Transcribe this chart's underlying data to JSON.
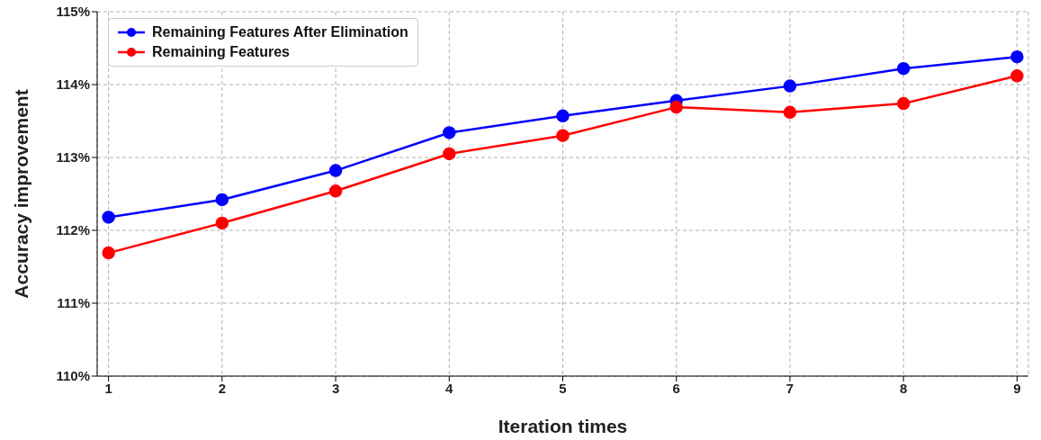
{
  "chart_data": {
    "type": "line",
    "xlabel": "Iteration times",
    "ylabel": "Accuracy improvement",
    "x": [
      1,
      2,
      3,
      4,
      5,
      6,
      7,
      8,
      9
    ],
    "series": [
      {
        "name": "Remaining Features After Elimination",
        "color": "#0000ff",
        "values": [
          112.18,
          112.42,
          112.82,
          113.34,
          113.57,
          113.78,
          113.98,
          114.22,
          114.38
        ]
      },
      {
        "name": "Remaining Features",
        "color": "#ff0000",
        "values": [
          111.69,
          112.1,
          112.54,
          113.05,
          113.3,
          113.69,
          113.62,
          113.74,
          114.12
        ]
      }
    ],
    "xlim": [
      0.9,
      9.1
    ],
    "xticks": [
      1,
      2,
      3,
      4,
      5,
      6,
      7,
      8,
      9
    ],
    "ylim": [
      110,
      115
    ],
    "yticks": [
      {
        "value": 110,
        "label": "110%"
      },
      {
        "value": 111,
        "label": "111%"
      },
      {
        "value": 112,
        "label": "112%"
      },
      {
        "value": 113,
        "label": "113%"
      },
      {
        "value": 114,
        "label": "114%"
      },
      {
        "value": 115,
        "label": "115%"
      }
    ],
    "grid": true,
    "legend": "top left",
    "marker": "circle",
    "line_style": "solid"
  }
}
